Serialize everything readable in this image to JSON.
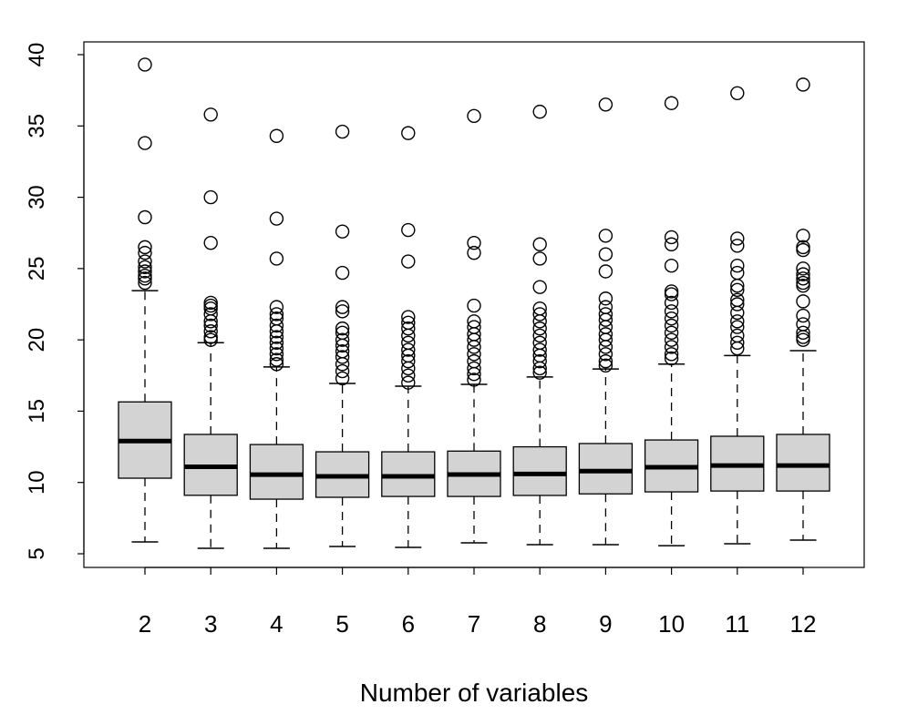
{
  "chart_data": {
    "type": "boxplot",
    "title": "",
    "xlabel": "Number of variables",
    "ylabel": "",
    "ylim": [
      4.2,
      41
    ],
    "yticks": [
      5,
      10,
      15,
      20,
      25,
      30,
      35,
      40
    ],
    "categories": [
      "2",
      "3",
      "4",
      "5",
      "6",
      "7",
      "8",
      "9",
      "10",
      "11",
      "12"
    ],
    "box_fill": "#d3d3d3",
    "boxes": [
      {
        "lower": 5.83,
        "q1": 10.3,
        "median": 12.9,
        "q3": 15.65,
        "upper": 23.45,
        "outliers": [
          39.3,
          33.8,
          28.6,
          26.5,
          26.1,
          25.5,
          25.1,
          24.8,
          24.5,
          24.3,
          24.0
        ]
      },
      {
        "lower": 5.38,
        "q1": 9.1,
        "median": 11.1,
        "q3": 13.37,
        "upper": 19.8,
        "outliers": [
          35.8,
          30.0,
          26.8,
          22.6,
          22.4,
          22.2,
          21.8,
          21.3,
          21.0,
          20.6,
          20.2,
          20.0
        ]
      },
      {
        "lower": 5.38,
        "q1": 8.83,
        "median": 10.55,
        "q3": 12.66,
        "upper": 18.1,
        "outliers": [
          34.3,
          28.5,
          25.7,
          22.3,
          21.8,
          21.5,
          21.0,
          20.6,
          20.2,
          19.8,
          19.4,
          19.0,
          18.6,
          18.3
        ]
      },
      {
        "lower": 5.51,
        "q1": 8.96,
        "median": 10.43,
        "q3": 12.15,
        "upper": 16.94,
        "outliers": [
          34.6,
          27.6,
          24.7,
          22.3,
          22.0,
          20.8,
          20.5,
          20.0,
          19.6,
          19.2,
          18.8,
          18.3,
          17.8,
          17.3
        ]
      },
      {
        "lower": 5.45,
        "q1": 9.02,
        "median": 10.43,
        "q3": 12.15,
        "upper": 16.75,
        "outliers": [
          34.5,
          27.7,
          25.5,
          21.6,
          21.2,
          20.8,
          20.3,
          19.8,
          19.3,
          18.9,
          18.5,
          18.0,
          17.5,
          17.0
        ]
      },
      {
        "lower": 5.77,
        "q1": 9.02,
        "median": 10.56,
        "q3": 12.2,
        "upper": 16.88,
        "outliers": [
          35.7,
          26.8,
          26.1,
          22.4,
          21.3,
          20.9,
          20.4,
          20.0,
          19.5,
          19.0,
          18.5,
          18.0,
          17.6,
          17.2
        ]
      },
      {
        "lower": 5.64,
        "q1": 9.09,
        "median": 10.6,
        "q3": 12.5,
        "upper": 17.4,
        "outliers": [
          36.0,
          26.7,
          25.7,
          23.7,
          22.2,
          21.8,
          21.3,
          20.8,
          20.3,
          19.8,
          19.3,
          18.9,
          18.5,
          18.0,
          17.7
        ]
      },
      {
        "lower": 5.64,
        "q1": 9.2,
        "median": 10.8,
        "q3": 12.73,
        "upper": 17.96,
        "outliers": [
          36.5,
          27.3,
          26.0,
          24.8,
          22.9,
          22.3,
          21.8,
          21.4,
          20.9,
          20.4,
          20.0,
          19.5,
          19.0,
          18.5,
          18.2
        ]
      },
      {
        "lower": 5.57,
        "q1": 9.34,
        "median": 11.07,
        "q3": 12.98,
        "upper": 18.3,
        "outliers": [
          36.6,
          27.2,
          26.7,
          25.2,
          23.4,
          23.2,
          22.6,
          22.0,
          21.5,
          21.0,
          20.5,
          20.0,
          19.5,
          19.0,
          18.7
        ]
      },
      {
        "lower": 5.7,
        "q1": 9.4,
        "median": 11.19,
        "q3": 13.24,
        "upper": 18.9,
        "outliers": [
          37.3,
          27.1,
          26.6,
          25.2,
          24.7,
          23.8,
          23.5,
          22.8,
          22.5,
          21.9,
          21.3,
          20.9,
          20.3,
          19.8,
          19.4
        ]
      },
      {
        "lower": 5.96,
        "q1": 9.4,
        "median": 11.19,
        "q3": 13.37,
        "upper": 19.24,
        "outliers": [
          37.9,
          27.3,
          26.5,
          26.3,
          25.0,
          24.6,
          24.3,
          24.0,
          23.8,
          22.7,
          21.7,
          21.1,
          20.5,
          20.2,
          20.0
        ]
      }
    ],
    "grid": false,
    "legend": "none"
  }
}
